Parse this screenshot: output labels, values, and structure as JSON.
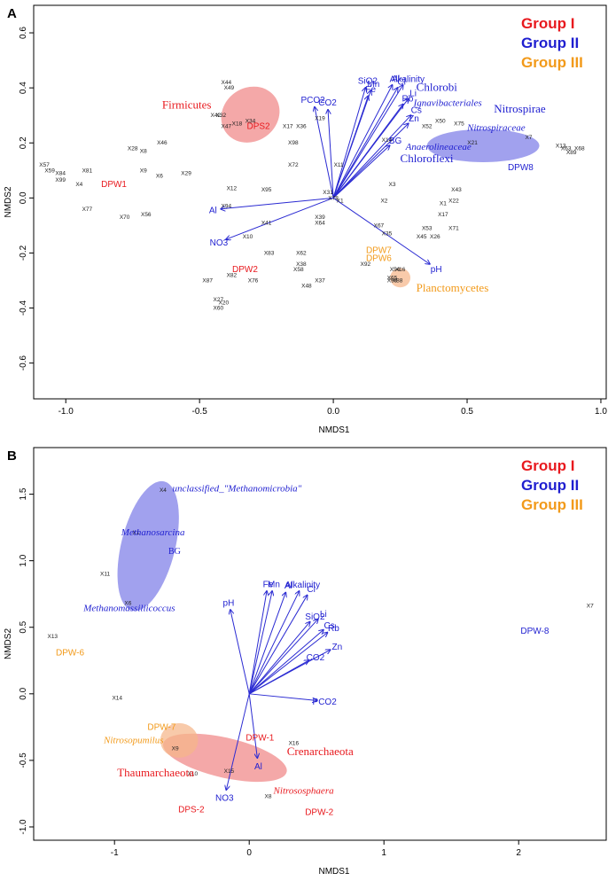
{
  "colors": {
    "group1": "#e8191e",
    "group2": "#1f1fd0",
    "group3": "#f29a1a",
    "arrow": "#2a2ad2",
    "point": "#222222",
    "blue_fill": "#7d7de8",
    "red_fill": "#f08686",
    "orange_fill": "#f5b589"
  },
  "chart_data": [
    {
      "panel": "A",
      "type": "scatter",
      "xlabel": "NMDS1",
      "ylabel": "NMDS2",
      "xlim": [
        -1.12,
        1.02
      ],
      "ylim": [
        -0.73,
        0.7
      ],
      "xticks": [
        -1.0,
        -0.5,
        0.0,
        0.5,
        1.0
      ],
      "xtick_labels": [
        "-1.0",
        "-0.5",
        "0.0",
        "0.5",
        "1.0"
      ],
      "yticks": [
        -0.6,
        -0.4,
        -0.2,
        0.0,
        0.2,
        0.4,
        0.6
      ],
      "ytick_labels": [
        "-0.6",
        "-0.4",
        "-0.2",
        "0.0",
        "0.2",
        "0.4",
        "0.6"
      ],
      "legend": {
        "position": "top-right",
        "items": [
          {
            "label": "Group I",
            "color": "group1"
          },
          {
            "label": "Group II",
            "color": "group2"
          },
          {
            "label": "Group III",
            "color": "group3"
          }
        ]
      },
      "ellipses": [
        {
          "cx": -0.31,
          "cy": 0.303,
          "rx": 0.1,
          "ry": 0.11,
          "rotate": 55,
          "color": "red_fill"
        },
        {
          "cx": 0.56,
          "cy": 0.19,
          "rx": 0.21,
          "ry": 0.06,
          "rotate": 0,
          "color": "blue_fill"
        },
        {
          "cx": 0.25,
          "cy": -0.29,
          "rx": 0.038,
          "ry": 0.035,
          "rotate": 0,
          "color": "orange_fill"
        }
      ],
      "points": [
        {
          "label": "X44",
          "x": -0.4,
          "y": 0.42
        },
        {
          "label": "X49",
          "x": -0.39,
          "y": 0.4
        },
        {
          "label": "X42",
          "x": -0.44,
          "y": 0.3
        },
        {
          "label": "X32",
          "x": -0.42,
          "y": 0.3
        },
        {
          "label": "X34",
          "x": -0.31,
          "y": 0.28
        },
        {
          "label": "X47",
          "x": -0.4,
          "y": 0.26
        },
        {
          "label": "X18",
          "x": -0.36,
          "y": 0.27
        },
        {
          "label": "X17",
          "x": -0.17,
          "y": 0.26
        },
        {
          "label": "X36",
          "x": -0.12,
          "y": 0.26
        },
        {
          "label": "X19",
          "x": -0.05,
          "y": 0.29
        },
        {
          "label": "X98",
          "x": -0.15,
          "y": 0.2
        },
        {
          "label": "X72",
          "x": -0.15,
          "y": 0.12
        },
        {
          "label": "X28",
          "x": -0.75,
          "y": 0.18
        },
        {
          "label": "X8",
          "x": -0.71,
          "y": 0.17
        },
        {
          "label": "X46",
          "x": -0.64,
          "y": 0.2
        },
        {
          "label": "X9",
          "x": -0.71,
          "y": 0.1
        },
        {
          "label": "X6",
          "x": -0.65,
          "y": 0.08
        },
        {
          "label": "X29",
          "x": -0.55,
          "y": 0.09
        },
        {
          "label": "X81",
          "x": -0.92,
          "y": 0.1
        },
        {
          "label": "X4",
          "x": -0.95,
          "y": 0.05
        },
        {
          "label": "X77",
          "x": -0.92,
          "y": -0.04
        },
        {
          "label": "X70",
          "x": -0.78,
          "y": -0.07
        },
        {
          "label": "X56",
          "x": -0.7,
          "y": -0.06
        },
        {
          "label": "X12",
          "x": -0.38,
          "y": 0.035
        },
        {
          "label": "X95",
          "x": -0.25,
          "y": 0.03
        },
        {
          "label": "X94",
          "x": -0.4,
          "y": -0.03
        },
        {
          "label": "X41",
          "x": -0.25,
          "y": -0.09
        },
        {
          "label": "X10",
          "x": -0.32,
          "y": -0.14
        },
        {
          "label": "X83",
          "x": -0.24,
          "y": -0.2
        },
        {
          "label": "X87",
          "x": -0.47,
          "y": -0.3
        },
        {
          "label": "X82",
          "x": -0.38,
          "y": -0.28
        },
        {
          "label": "X76",
          "x": -0.3,
          "y": -0.3
        },
        {
          "label": "X27",
          "x": -0.43,
          "y": -0.37
        },
        {
          "label": "X20",
          "x": -0.41,
          "y": -0.38
        },
        {
          "label": "X60",
          "x": -0.43,
          "y": -0.4
        },
        {
          "label": "X31",
          "x": -0.02,
          "y": 0.02
        },
        {
          "label": "X78",
          "x": 0.0,
          "y": 0.0
        },
        {
          "label": "X1",
          "x": 0.025,
          "y": -0.01
        },
        {
          "label": "X39",
          "x": -0.05,
          "y": -0.07
        },
        {
          "label": "X64",
          "x": -0.05,
          "y": -0.09
        },
        {
          "label": "X62",
          "x": -0.12,
          "y": -0.2
        },
        {
          "label": "X38",
          "x": -0.12,
          "y": -0.24
        },
        {
          "label": "X58",
          "x": -0.13,
          "y": -0.26
        },
        {
          "label": "X48",
          "x": -0.1,
          "y": -0.32
        },
        {
          "label": "X37",
          "x": -0.05,
          "y": -0.3
        },
        {
          "label": "X11",
          "x": 0.02,
          "y": 0.12
        },
        {
          "label": "X3",
          "x": 0.22,
          "y": 0.05
        },
        {
          "label": "X2",
          "x": 0.19,
          "y": -0.01
        },
        {
          "label": "X67",
          "x": 0.17,
          "y": -0.1
        },
        {
          "label": "X35",
          "x": 0.2,
          "y": -0.13
        },
        {
          "label": "X45",
          "x": 0.33,
          "y": -0.14
        },
        {
          "label": "X26",
          "x": 0.38,
          "y": -0.14
        },
        {
          "label": "X53",
          "x": 0.35,
          "y": -0.11
        },
        {
          "label": "X71",
          "x": 0.45,
          "y": -0.11
        },
        {
          "label": "X17",
          "x": 0.41,
          "y": -0.06
        },
        {
          "label": "X1",
          "x": 0.41,
          "y": -0.02
        },
        {
          "label": "X22",
          "x": 0.45,
          "y": -0.01
        },
        {
          "label": "X43",
          "x": 0.46,
          "y": 0.03
        },
        {
          "label": "X14",
          "x": 0.2,
          "y": 0.21
        },
        {
          "label": "X50",
          "x": 0.4,
          "y": 0.28
        },
        {
          "label": "X75",
          "x": 0.47,
          "y": 0.27
        },
        {
          "label": "X52",
          "x": 0.35,
          "y": 0.26
        },
        {
          "label": "X21",
          "x": 0.52,
          "y": 0.2
        },
        {
          "label": "X7",
          "x": 0.73,
          "y": 0.22
        },
        {
          "label": "X13",
          "x": 0.85,
          "y": 0.19
        },
        {
          "label": "X63",
          "x": 0.87,
          "y": 0.18
        },
        {
          "label": "X68",
          "x": 0.92,
          "y": 0.18
        },
        {
          "label": "X89",
          "x": 0.89,
          "y": 0.165
        },
        {
          "label": "X57",
          "x": -1.08,
          "y": 0.12
        },
        {
          "label": "X59",
          "x": -1.06,
          "y": 0.1
        },
        {
          "label": "X84",
          "x": -1.02,
          "y": 0.09
        },
        {
          "label": "X99",
          "x": -1.02,
          "y": 0.065
        },
        {
          "label": "X92",
          "x": 0.12,
          "y": -0.24
        },
        {
          "label": "X54",
          "x": 0.23,
          "y": -0.26
        },
        {
          "label": "X16",
          "x": 0.25,
          "y": -0.26
        },
        {
          "label": "X93",
          "x": 0.22,
          "y": -0.3
        },
        {
          "label": "X65",
          "x": 0.22,
          "y": -0.29
        },
        {
          "label": "X88",
          "x": 0.24,
          "y": -0.3
        }
      ],
      "samples": [
        {
          "label": "DPW1",
          "x": -0.82,
          "y": 0.05,
          "color": "group1"
        },
        {
          "label": "DPS2",
          "x": -0.28,
          "y": 0.26,
          "color": "group1"
        },
        {
          "label": "DPW2",
          "x": -0.33,
          "y": -0.26,
          "color": "group1"
        },
        {
          "label": "DPW8",
          "x": 0.7,
          "y": 0.11,
          "color": "group2"
        },
        {
          "label": "DPW7",
          "x": 0.17,
          "y": -0.19,
          "color": "group3"
        },
        {
          "label": "DPW6",
          "x": 0.17,
          "y": -0.22,
          "color": "group3"
        }
      ],
      "vectors": [
        {
          "label": "SiO2",
          "x": 0.12,
          "y": 0.4
        },
        {
          "label": "Mn",
          "x": 0.14,
          "y": 0.39
        },
        {
          "label": "Fe",
          "x": 0.13,
          "y": 0.37
        },
        {
          "label": "Al",
          "x": 0.22,
          "y": 0.41
        },
        {
          "label": "Alkalinity",
          "x": 0.26,
          "y": 0.41
        },
        {
          "label": "Cl",
          "x": 0.24,
          "y": 0.4
        },
        {
          "label": "Li",
          "x": 0.28,
          "y": 0.36
        },
        {
          "label": "Rb",
          "x": 0.26,
          "y": 0.34
        },
        {
          "label": "Cs",
          "x": 0.29,
          "y": 0.3
        },
        {
          "label": "Zn",
          "x": 0.28,
          "y": 0.27
        },
        {
          "label": "CO2",
          "x": -0.02,
          "y": 0.32
        },
        {
          "label": "PCO2",
          "x": -0.07,
          "y": 0.33
        },
        {
          "label": "BG",
          "x": 0.21,
          "y": 0.19
        },
        {
          "label": "Al",
          "x": -0.42,
          "y": -0.04
        },
        {
          "label": "NO3",
          "x": -0.4,
          "y": -0.15
        },
        {
          "label": "pH",
          "x": 0.36,
          "y": -0.24
        }
      ],
      "annotations": [
        {
          "label": "Chlorobi",
          "x": 0.31,
          "y": 0.39,
          "color": "group2",
          "style": "normal",
          "size": 13
        },
        {
          "label": "Ignavibacteriales",
          "x": 0.3,
          "y": 0.335,
          "color": "group2",
          "style": "italic",
          "size": 11
        },
        {
          "label": "Nitrospirae",
          "x": 0.6,
          "y": 0.31,
          "color": "group2",
          "style": "normal",
          "size": 13
        },
        {
          "label": "Nitrospiraceae",
          "x": 0.5,
          "y": 0.245,
          "color": "group2",
          "style": "italic",
          "size": 11
        },
        {
          "label": "Anaerolineaceae",
          "x": 0.27,
          "y": 0.175,
          "color": "group2",
          "style": "italic",
          "size": 11
        },
        {
          "label": "Chloroflexi",
          "x": 0.25,
          "y": 0.13,
          "color": "group2",
          "style": "normal",
          "size": 13
        },
        {
          "label": "Firmicutes",
          "x": -0.64,
          "y": 0.325,
          "color": "group1",
          "style": "normal",
          "size": 13
        },
        {
          "label": "Planctomycetes",
          "x": 0.31,
          "y": -0.34,
          "color": "group3",
          "style": "normal",
          "size": 13
        }
      ]
    },
    {
      "panel": "B",
      "type": "scatter",
      "xlabel": "NMDS1",
      "ylabel": "NMDS2",
      "xlim": [
        -1.6,
        2.65
      ],
      "ylim": [
        -1.1,
        1.85
      ],
      "xticks": [
        -1,
        0,
        1,
        2
      ],
      "xtick_labels": [
        "-1",
        "0",
        "1",
        "2"
      ],
      "yticks": [
        -1.0,
        -0.5,
        0.0,
        0.5,
        1.0,
        1.5
      ],
      "ytick_labels": [
        "-1.0",
        "-0.5",
        "0.0",
        "0.5",
        "1.0",
        "1.5"
      ],
      "legend": {
        "position": "top-right",
        "items": [
          {
            "label": "Group I",
            "color": "group1"
          },
          {
            "label": "Group II",
            "color": "group2"
          },
          {
            "label": "Group III",
            "color": "group3"
          }
        ]
      },
      "ellipses": [
        {
          "cx": -0.75,
          "cy": 1.11,
          "rx": 0.2,
          "ry": 0.5,
          "rotate": 14,
          "color": "blue_fill"
        },
        {
          "cx": -0.18,
          "cy": -0.48,
          "rx": 0.47,
          "ry": 0.15,
          "rotate": 13,
          "color": "red_fill"
        },
        {
          "cx": -0.52,
          "cy": -0.35,
          "rx": 0.14,
          "ry": 0.13,
          "rotate": 0,
          "color": "orange_fill"
        }
      ],
      "points": [
        {
          "label": "X4",
          "x": -0.64,
          "y": 1.53
        },
        {
          "label": "X1",
          "x": -0.84,
          "y": 1.21
        },
        {
          "label": "X11",
          "x": -1.07,
          "y": 0.9
        },
        {
          "label": "X6",
          "x": -0.9,
          "y": 0.68
        },
        {
          "label": "X13",
          "x": -1.46,
          "y": 0.43
        },
        {
          "label": "X14",
          "x": -0.98,
          "y": -0.03
        },
        {
          "label": "X9",
          "x": -0.55,
          "y": -0.41
        },
        {
          "label": "X10",
          "x": -0.42,
          "y": -0.6
        },
        {
          "label": "X15",
          "x": -0.15,
          "y": -0.58
        },
        {
          "label": "X16",
          "x": 0.33,
          "y": -0.37
        },
        {
          "label": "X8",
          "x": 0.14,
          "y": -0.77
        },
        {
          "label": "X7",
          "x": 2.53,
          "y": 0.66
        }
      ],
      "samples": [
        {
          "label": "DPW-6",
          "x": -1.33,
          "y": 0.31,
          "color": "group3"
        },
        {
          "label": "DPW-7",
          "x": -0.65,
          "y": -0.25,
          "color": "group3"
        },
        {
          "label": "DPW-1",
          "x": 0.08,
          "y": -0.33,
          "color": "group1"
        },
        {
          "label": "DPS-2",
          "x": -0.43,
          "y": -0.87,
          "color": "group1"
        },
        {
          "label": "DPW-2",
          "x": 0.52,
          "y": -0.89,
          "color": "group1"
        },
        {
          "label": "DPW-8",
          "x": 2.12,
          "y": 0.47,
          "color": "group2"
        }
      ],
      "vectors": [
        {
          "label": "pH",
          "x": -0.14,
          "y": 0.63
        },
        {
          "label": "Fe",
          "x": 0.13,
          "y": 0.77
        },
        {
          "label": "Mn",
          "x": 0.17,
          "y": 0.77
        },
        {
          "label": "Al",
          "x": 0.27,
          "y": 0.76
        },
        {
          "label": "Alkalinity",
          "x": 0.37,
          "y": 0.77
        },
        {
          "label": "Cl",
          "x": 0.43,
          "y": 0.74
        },
        {
          "label": "Li",
          "x": 0.51,
          "y": 0.56
        },
        {
          "label": "SiO2",
          "x": 0.45,
          "y": 0.54
        },
        {
          "label": "Cs",
          "x": 0.55,
          "y": 0.48
        },
        {
          "label": "Rb",
          "x": 0.58,
          "y": 0.46
        },
        {
          "label": "Zn",
          "x": 0.6,
          "y": 0.33
        },
        {
          "label": "CO2",
          "x": 0.44,
          "y": 0.25
        },
        {
          "label": "PCO2",
          "x": 0.5,
          "y": -0.05
        },
        {
          "label": "Al",
          "x": 0.06,
          "y": -0.48
        },
        {
          "label": "NO3",
          "x": -0.17,
          "y": -0.72
        }
      ],
      "annotations": [
        {
          "label": "unclassified_\"Methanomicrobia\"",
          "x": -0.57,
          "y": 1.52,
          "color": "group2",
          "style": "italic",
          "size": 11
        },
        {
          "label": "Methanosarcina",
          "x": -0.95,
          "y": 1.19,
          "color": "group2",
          "style": "italic",
          "size": 11
        },
        {
          "label": "BG",
          "x": -0.6,
          "y": 1.05,
          "color": "group2",
          "style": "normal",
          "size": 10
        },
        {
          "label": "Methanomassiliicoccus",
          "x": -1.23,
          "y": 0.62,
          "color": "group2",
          "style": "italic",
          "size": 11
        },
        {
          "label": "Crenarchaeota",
          "x": 0.28,
          "y": -0.46,
          "color": "group1",
          "style": "normal",
          "size": 13
        },
        {
          "label": "Thaumarchaeota",
          "x": -0.98,
          "y": -0.62,
          "color": "group1",
          "style": "normal",
          "size": 13
        },
        {
          "label": "Nitrososphaera",
          "x": 0.18,
          "y": -0.75,
          "color": "group1",
          "style": "italic",
          "size": 11
        },
        {
          "label": "Nitrosopumilus",
          "x": -1.08,
          "y": -0.37,
          "color": "group3",
          "style": "italic",
          "size": 11
        }
      ]
    }
  ]
}
